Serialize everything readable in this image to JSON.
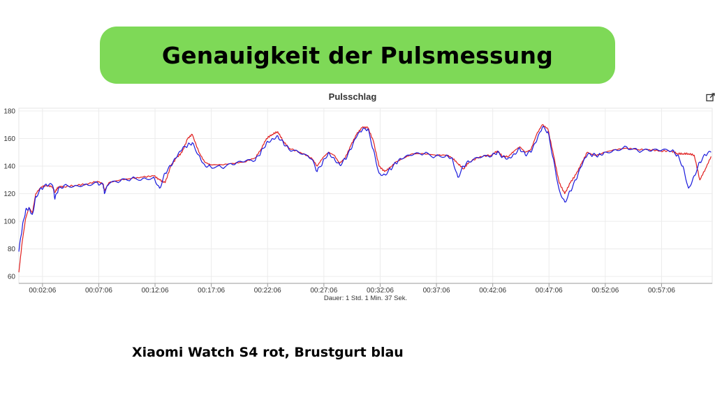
{
  "banner": {
    "title": "Genauigkeit der Pulsmessung"
  },
  "caption": "Xiaomi Watch S4 rot, Brustgurt blau",
  "icons": {
    "export": "export-icon"
  },
  "colors": {
    "banner": "#7ed957",
    "watch": "#e02020",
    "strap": "#1a1adc"
  },
  "chart_data": {
    "type": "line",
    "title": "Pulsschlag",
    "xlabel": "Dauer: 1 Std. 1 Min. 37 Sek.",
    "ylabel": "",
    "x_unit": "minutes",
    "xlim": [
      0,
      61.6
    ],
    "ylim": [
      55,
      182
    ],
    "yticks": [
      60,
      80,
      100,
      120,
      140,
      160,
      180
    ],
    "xticks": [
      {
        "at": 2.1,
        "label": "00:02:06"
      },
      {
        "at": 7.1,
        "label": "00:07:06"
      },
      {
        "at": 12.1,
        "label": "00:12:06"
      },
      {
        "at": 17.1,
        "label": "00:17:06"
      },
      {
        "at": 22.1,
        "label": "00:22:06"
      },
      {
        "at": 27.1,
        "label": "00:27:06"
      },
      {
        "at": 32.1,
        "label": "00:32:06"
      },
      {
        "at": 37.1,
        "label": "00:37:06"
      },
      {
        "at": 42.1,
        "label": "00:42:06"
      },
      {
        "at": 47.1,
        "label": "00:47:06"
      },
      {
        "at": 52.1,
        "label": "00:52:06"
      },
      {
        "at": 57.1,
        "label": "00:57:06"
      }
    ],
    "grid": true,
    "legend": "none",
    "series": [
      {
        "color": "#e02020",
        "x": [
          0,
          0.3,
          0.6,
          0.9,
          1.2,
          1.5,
          2.0,
          2.5,
          3.0,
          3.2,
          3.5,
          4.0,
          5.0,
          6.0,
          7.0,
          7.5,
          7.6,
          8.0,
          9.0,
          10.0,
          11.0,
          12.0,
          12.5,
          13.0,
          13.5,
          14.0,
          14.5,
          15.0,
          15.4,
          16.0,
          16.5,
          17.0,
          18.0,
          19.0,
          20.0,
          21.0,
          21.5,
          22.0,
          22.5,
          23.0,
          23.5,
          24.0,
          25.0,
          26.0,
          26.5,
          27.0,
          27.5,
          28.0,
          28.5,
          29.0,
          29.5,
          30.0,
          30.5,
          31.0,
          31.5,
          32.0,
          32.5,
          33.0,
          33.5,
          34.0,
          35.0,
          36.0,
          37.0,
          38.0,
          38.5,
          39.0,
          39.5,
          40.0,
          41.0,
          42.0,
          42.5,
          43.0,
          43.5,
          44.0,
          44.5,
          45.0,
          45.5,
          46.0,
          46.5,
          47.0,
          47.5,
          48.0,
          48.5,
          49.0,
          49.5,
          50.0,
          50.5,
          51.0,
          51.5,
          52.0,
          53.0,
          54.0,
          55.0,
          56.0,
          57.0,
          58.0,
          58.5,
          59.0,
          59.5,
          60.0,
          60.5,
          61.0,
          61.5
        ],
        "values": [
          63,
          85,
          102,
          110,
          106,
          120,
          125,
          126,
          125,
          121,
          125,
          125,
          126,
          127,
          129,
          127,
          122,
          128,
          130,
          131,
          132,
          133,
          130,
          128,
          140,
          146,
          150,
          160,
          163,
          150,
          143,
          141,
          141,
          142,
          143,
          146,
          152,
          160,
          163,
          165,
          158,
          153,
          150,
          146,
          140,
          146,
          150,
          148,
          142,
          146,
          155,
          163,
          168,
          168,
          158,
          140,
          136,
          139,
          143,
          145,
          149,
          149,
          148,
          148,
          146,
          142,
          138,
          143,
          147,
          148,
          151,
          147,
          147,
          151,
          154,
          150,
          152,
          163,
          170,
          167,
          148,
          128,
          120,
          128,
          134,
          142,
          150,
          148,
          148,
          150,
          152,
          153,
          152,
          152,
          151,
          151,
          149,
          149,
          149,
          148,
          130,
          138,
          147
        ]
      },
      {
        "color": "#1a1adc",
        "x": [
          0,
          0.3,
          0.6,
          0.9,
          1.2,
          1.5,
          2.0,
          2.5,
          3.0,
          3.2,
          3.5,
          4.0,
          5.0,
          6.0,
          7.0,
          7.5,
          7.6,
          8.0,
          9.0,
          10.0,
          11.0,
          12.0,
          12.5,
          13.0,
          13.5,
          14.0,
          14.5,
          15.0,
          15.4,
          16.0,
          16.5,
          17.0,
          18.0,
          19.0,
          20.0,
          21.0,
          21.5,
          22.0,
          22.5,
          23.0,
          23.5,
          24.0,
          25.0,
          26.0,
          26.5,
          27.0,
          27.5,
          28.0,
          28.5,
          29.0,
          29.5,
          30.0,
          30.5,
          31.0,
          31.5,
          32.0,
          32.5,
          33.0,
          33.5,
          34.0,
          35.0,
          36.0,
          37.0,
          38.0,
          38.5,
          39.0,
          39.5,
          40.0,
          41.0,
          42.0,
          42.5,
          43.0,
          43.5,
          44.0,
          44.5,
          45.0,
          45.5,
          46.0,
          46.5,
          47.0,
          47.5,
          48.0,
          48.5,
          49.0,
          49.5,
          50.0,
          50.5,
          51.0,
          51.5,
          52.0,
          53.0,
          54.0,
          55.0,
          56.0,
          57.0,
          58.0,
          58.5,
          59.0,
          59.5,
          60.0,
          60.5,
          61.0,
          61.5
        ],
        "values": [
          78,
          95,
          108,
          110,
          105,
          118,
          124,
          126,
          126,
          116,
          123,
          126,
          126,
          127,
          128,
          126,
          120,
          127,
          129,
          131,
          131,
          132,
          124,
          135,
          140,
          146,
          152,
          155,
          157,
          148,
          141,
          140,
          139,
          141,
          143,
          144,
          150,
          157,
          160,
          162,
          157,
          152,
          149,
          145,
          136,
          143,
          150,
          146,
          141,
          145,
          152,
          161,
          166,
          167,
          152,
          135,
          134,
          138,
          142,
          145,
          148,
          149,
          147,
          148,
          146,
          132,
          140,
          143,
          146,
          147,
          150,
          147,
          146,
          149,
          153,
          148,
          150,
          158,
          168,
          165,
          145,
          123,
          114,
          122,
          130,
          140,
          148,
          148,
          148,
          150,
          152,
          154,
          151,
          151,
          151,
          151,
          148,
          140,
          124,
          133,
          143,
          148,
          150
        ]
      }
    ]
  }
}
